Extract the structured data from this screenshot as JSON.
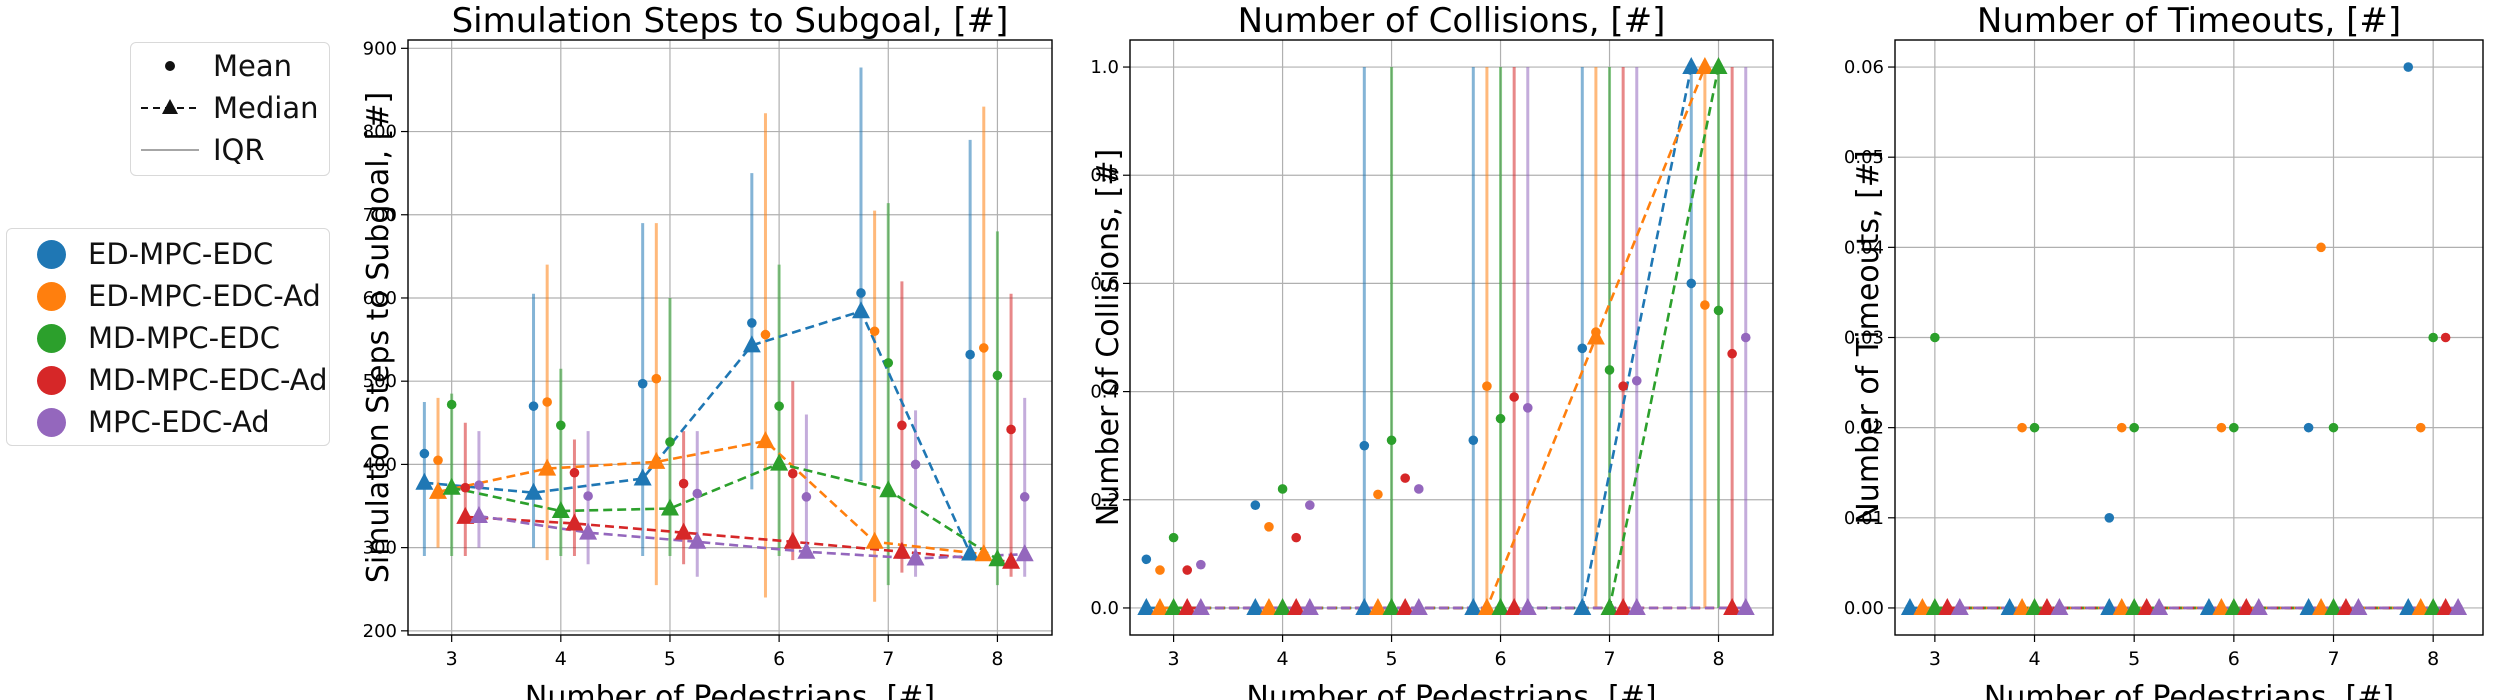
{
  "legend_stats": {
    "items": [
      {
        "label": "Mean",
        "symbol": "dot"
      },
      {
        "label": "Median",
        "symbol": "dashed-triangle"
      },
      {
        "label": "IQR",
        "symbol": "line"
      }
    ]
  },
  "legend_methods": {
    "items": [
      {
        "label": "ED-MPC-EDC",
        "color": "#1f77b4"
      },
      {
        "label": "ED-MPC-EDC-Ad",
        "color": "#ff7f0e"
      },
      {
        "label": "MD-MPC-EDC",
        "color": "#2ca02c"
      },
      {
        "label": "MD-MPC-EDC-Ad",
        "color": "#d62728"
      },
      {
        "label": "MPC-EDC-Ad",
        "color": "#9467bd"
      }
    ]
  },
  "chart_data": [
    {
      "type": "scatter",
      "title": "Simulation Steps to Subgoal, [#]",
      "xlabel": "Number of Pedestrians, [#]",
      "ylabel": "Simulation Steps to Subgoal, [#]",
      "xlim": [
        2.6,
        8.5
      ],
      "ylim": [
        195,
        910
      ],
      "xticks": [
        3,
        4,
        5,
        6,
        7,
        8
      ],
      "xtick_labels": [
        "3",
        "4",
        "5",
        "6",
        "7",
        "8"
      ],
      "yticks": [
        200,
        300,
        400,
        500,
        600,
        700,
        800,
        900
      ],
      "ytick_labels": [
        "200",
        "300",
        "400",
        "500",
        "600",
        "700",
        "800",
        "900"
      ],
      "grid": true,
      "x": [
        3,
        4,
        5,
        6,
        7,
        8
      ],
      "series": [
        {
          "name": "ED-MPC-EDC",
          "color": "#1f77b4",
          "offset": -0.25,
          "mean": [
            413,
            470,
            497,
            570,
            606,
            532
          ],
          "median": [
            378,
            366,
            383,
            543,
            584,
            293
          ],
          "iqr": [
            [
              290,
              475
            ],
            [
              300,
              605
            ],
            [
              290,
              690
            ],
            [
              370,
              750
            ],
            [
              380,
              877
            ],
            [
              290,
              790
            ]
          ]
        },
        {
          "name": "ED-MPC-EDC-Ad",
          "color": "#ff7f0e",
          "offset": -0.125,
          "mean": [
            405,
            475,
            503,
            556,
            560,
            540
          ],
          "median": [
            367,
            395,
            403,
            428,
            307,
            292
          ],
          "iqr": [
            [
              300,
              480
            ],
            [
              285,
              640
            ],
            [
              255,
              690
            ],
            [
              240,
              822
            ],
            [
              235,
              705
            ],
            [
              290,
              830
            ]
          ]
        },
        {
          "name": "MD-MPC-EDC",
          "color": "#2ca02c",
          "offset": 0,
          "mean": [
            472,
            447,
            427,
            470,
            522,
            507
          ],
          "median": [
            372,
            344,
            347,
            401,
            369,
            286
          ],
          "iqr": [
            [
              290,
              485
            ],
            [
              290,
              515
            ],
            [
              290,
              600
            ],
            [
              290,
              640
            ],
            [
              255,
              714
            ],
            [
              255,
              680
            ]
          ]
        },
        {
          "name": "MD-MPC-EDC-Ad",
          "color": "#d62728",
          "offset": 0.125,
          "mean": [
            372,
            390,
            377,
            389,
            447,
            442
          ],
          "median": [
            337,
            329,
            318,
            307,
            295,
            283
          ],
          "iqr": [
            [
              290,
              450
            ],
            [
              290,
              430
            ],
            [
              280,
              440
            ],
            [
              285,
              500
            ],
            [
              270,
              620
            ],
            [
              265,
              605
            ]
          ]
        },
        {
          "name": "MPC-EDC-Ad",
          "color": "#9467bd",
          "offset": 0.25,
          "mean": [
            375,
            362,
            365,
            361,
            400,
            361
          ],
          "median": [
            338,
            318,
            307,
            295,
            287,
            292
          ],
          "iqr": [
            [
              300,
              440
            ],
            [
              280,
              440
            ],
            [
              265,
              440
            ],
            [
              290,
              460
            ],
            [
              265,
              465
            ],
            [
              265,
              480
            ]
          ]
        }
      ]
    },
    {
      "type": "scatter",
      "title": "Number of Collisions, [#]",
      "xlabel": "Number of Pedestrians, [#]",
      "ylabel": "Number of Collisions, [#]",
      "xlim": [
        2.6,
        8.5
      ],
      "ylim": [
        -0.05,
        1.05
      ],
      "xticks": [
        3,
        4,
        5,
        6,
        7,
        8
      ],
      "xtick_labels": [
        "3",
        "4",
        "5",
        "6",
        "7",
        "8"
      ],
      "yticks": [
        0.0,
        0.2,
        0.4,
        0.6,
        0.8,
        1.0
      ],
      "ytick_labels": [
        "0.0",
        "0.2",
        "0.4",
        "0.6",
        "0.8",
        "1.0"
      ],
      "grid": true,
      "x": [
        3,
        4,
        5,
        6,
        7,
        8
      ],
      "series": [
        {
          "name": "ED-MPC-EDC",
          "color": "#1f77b4",
          "offset": -0.25,
          "mean": [
            0.09,
            0.19,
            0.3,
            0.31,
            0.48,
            0.6
          ],
          "median": [
            0,
            0,
            0,
            0,
            0,
            1
          ],
          "iqr": [
            [
              0,
              0
            ],
            [
              0,
              0
            ],
            [
              0,
              1
            ],
            [
              0,
              1
            ],
            [
              0,
              1
            ],
            [
              0,
              1
            ]
          ]
        },
        {
          "name": "ED-MPC-EDC-Ad",
          "color": "#ff7f0e",
          "offset": -0.125,
          "mean": [
            0.07,
            0.15,
            0.21,
            0.41,
            0.51,
            0.56
          ],
          "median": [
            0,
            0,
            0,
            0,
            0.5,
            1
          ],
          "iqr": [
            [
              0,
              0
            ],
            [
              0,
              0
            ],
            [
              0,
              0
            ],
            [
              0,
              1
            ],
            [
              0,
              1
            ],
            [
              0,
              1
            ]
          ]
        },
        {
          "name": "MD-MPC-EDC",
          "color": "#2ca02c",
          "offset": 0,
          "mean": [
            0.13,
            0.22,
            0.31,
            0.35,
            0.44,
            0.55
          ],
          "median": [
            0,
            0,
            0,
            0,
            0,
            1
          ],
          "iqr": [
            [
              0,
              0
            ],
            [
              0,
              0
            ],
            [
              0,
              1
            ],
            [
              0,
              1
            ],
            [
              0,
              1
            ],
            [
              0,
              1
            ]
          ]
        },
        {
          "name": "MD-MPC-EDC-Ad",
          "color": "#d62728",
          "offset": 0.125,
          "mean": [
            0.07,
            0.13,
            0.24,
            0.39,
            0.41,
            0.47
          ],
          "median": [
            0,
            0,
            0,
            0,
            0,
            0
          ],
          "iqr": [
            [
              0,
              0
            ],
            [
              0,
              0
            ],
            [
              0,
              0
            ],
            [
              0,
              1
            ],
            [
              0,
              1
            ],
            [
              0,
              1
            ]
          ]
        },
        {
          "name": "MPC-EDC-Ad",
          "color": "#9467bd",
          "offset": 0.25,
          "mean": [
            0.08,
            0.19,
            0.22,
            0.37,
            0.42,
            0.5
          ],
          "median": [
            0,
            0,
            0,
            0,
            0,
            0
          ],
          "iqr": [
            [
              0,
              0
            ],
            [
              0,
              0
            ],
            [
              0,
              0
            ],
            [
              0,
              1
            ],
            [
              0,
              1
            ],
            [
              0,
              1
            ]
          ]
        }
      ]
    },
    {
      "type": "scatter",
      "title": "Number of Timeouts, [#]",
      "xlabel": "Number of Pedestrians, [#]",
      "ylabel": "Number of Timeouts, [#]",
      "xlim": [
        2.6,
        8.5
      ],
      "ylim": [
        -0.003,
        0.063
      ],
      "xticks": [
        3,
        4,
        5,
        6,
        7,
        8
      ],
      "xtick_labels": [
        "3",
        "4",
        "5",
        "6",
        "7",
        "8"
      ],
      "yticks": [
        0.0,
        0.01,
        0.02,
        0.03,
        0.04,
        0.05,
        0.06
      ],
      "ytick_labels": [
        "0.00",
        "0.01",
        "0.02",
        "0.03",
        "0.04",
        "0.05",
        "0.06"
      ],
      "grid": true,
      "x": [
        3,
        4,
        5,
        6,
        7,
        8
      ],
      "series": [
        {
          "name": "ED-MPC-EDC",
          "color": "#1f77b4",
          "offset": -0.25,
          "mean": [
            0,
            0,
            0.01,
            0,
            0.02,
            0.06
          ],
          "median": [
            0,
            0,
            0,
            0,
            0,
            0
          ],
          "iqr": [
            [
              0,
              0
            ],
            [
              0,
              0
            ],
            [
              0,
              0
            ],
            [
              0,
              0
            ],
            [
              0,
              0
            ],
            [
              0,
              0
            ]
          ]
        },
        {
          "name": "ED-MPC-EDC-Ad",
          "color": "#ff7f0e",
          "offset": -0.125,
          "mean": [
            0,
            0.02,
            0.02,
            0.02,
            0.04,
            0.02
          ],
          "median": [
            0,
            0,
            0,
            0,
            0,
            0
          ],
          "iqr": [
            [
              0,
              0
            ],
            [
              0,
              0
            ],
            [
              0,
              0
            ],
            [
              0,
              0
            ],
            [
              0,
              0
            ],
            [
              0,
              0
            ]
          ]
        },
        {
          "name": "MD-MPC-EDC",
          "color": "#2ca02c",
          "offset": 0,
          "mean": [
            0.03,
            0.02,
            0.02,
            0.02,
            0.02,
            0.03
          ],
          "median": [
            0,
            0,
            0,
            0,
            0,
            0
          ],
          "iqr": [
            [
              0,
              0
            ],
            [
              0,
              0
            ],
            [
              0,
              0
            ],
            [
              0,
              0
            ],
            [
              0,
              0
            ],
            [
              0,
              0
            ]
          ]
        },
        {
          "name": "MD-MPC-EDC-Ad",
          "color": "#d62728",
          "offset": 0.125,
          "mean": [
            0,
            0,
            0,
            0,
            0,
            0.03
          ],
          "median": [
            0,
            0,
            0,
            0,
            0,
            0
          ],
          "iqr": [
            [
              0,
              0
            ],
            [
              0,
              0
            ],
            [
              0,
              0
            ],
            [
              0,
              0
            ],
            [
              0,
              0
            ],
            [
              0,
              0
            ]
          ]
        },
        {
          "name": "MPC-EDC-Ad",
          "color": "#9467bd",
          "offset": 0.25,
          "mean": [
            0,
            0,
            0,
            0,
            0,
            0
          ],
          "median": [
            0,
            0,
            0,
            0,
            0,
            0
          ],
          "iqr": [
            [
              0,
              0
            ],
            [
              0,
              0
            ],
            [
              0,
              0
            ],
            [
              0,
              0
            ],
            [
              0,
              0
            ],
            [
              0,
              0
            ]
          ]
        }
      ]
    }
  ]
}
